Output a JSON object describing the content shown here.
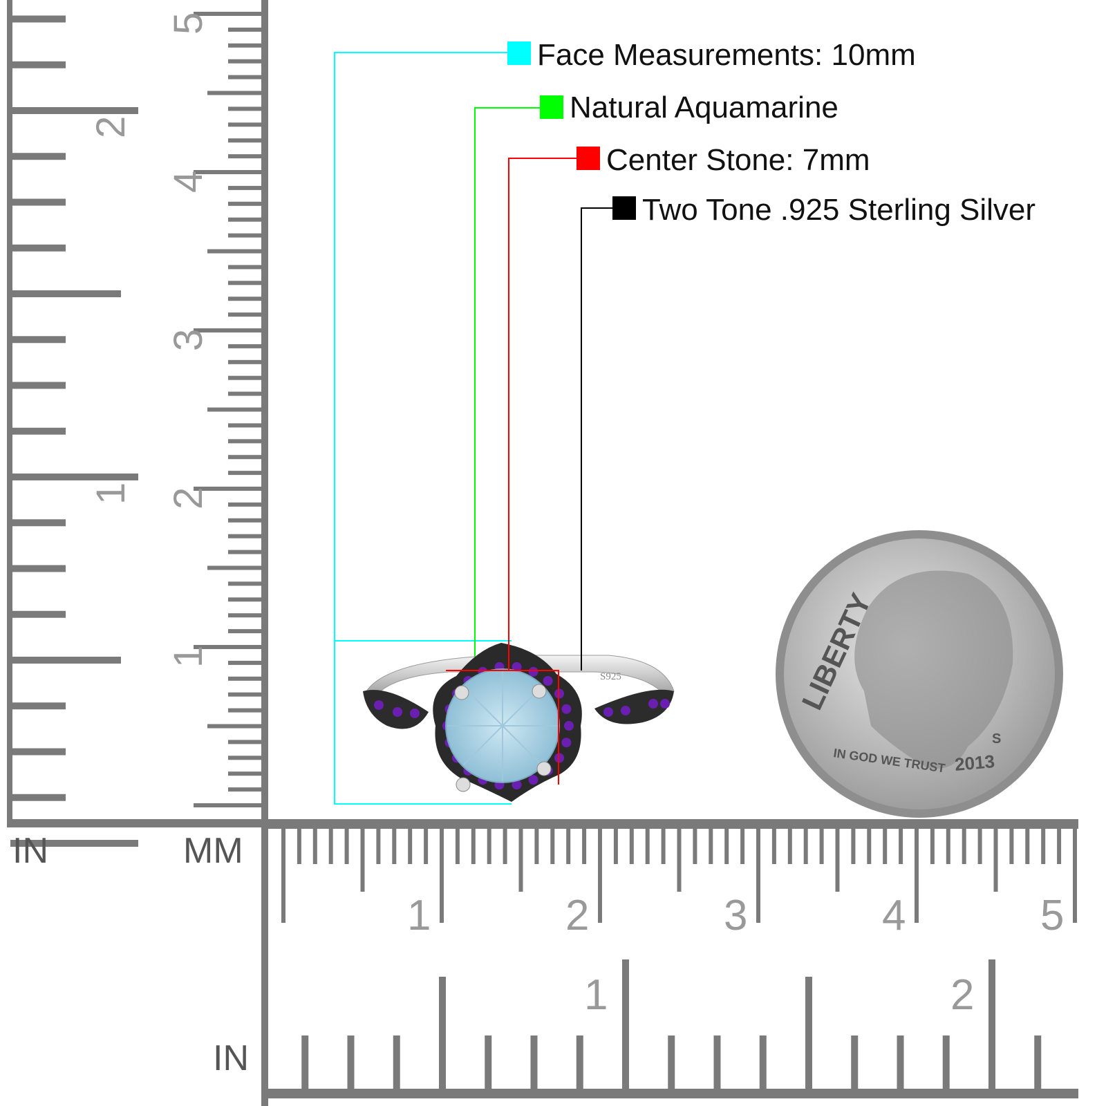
{
  "callouts": [
    {
      "label": "Face Measurements: 10mm",
      "color": "#00FFFF"
    },
    {
      "label": "Natural Aquamarine",
      "color": "#00FF00"
    },
    {
      "label": "Center Stone: 7mm",
      "color": "#FF0000"
    },
    {
      "label": "Two Tone .925 Sterling Silver",
      "color": "#000000"
    }
  ],
  "ruler_vertical": {
    "unit_left": "IN",
    "unit_right": "MM",
    "mm_labels": [
      "1",
      "2",
      "3",
      "4",
      "5"
    ],
    "in_labels": [
      "1",
      "2"
    ]
  },
  "ruler_horizontal": {
    "unit_bottom": "IN",
    "mm_labels": [
      "1",
      "2",
      "3",
      "4",
      "5"
    ],
    "in_labels": [
      "1",
      "2"
    ]
  },
  "ring": {
    "stamp": "S925",
    "stone_color": "#A9D3E6",
    "accent_color": "#6A1FB0"
  },
  "coin": {
    "legend": "LIBERTY",
    "motto": "IN GOD WE TRUST",
    "year": "2013",
    "mint": "S"
  }
}
